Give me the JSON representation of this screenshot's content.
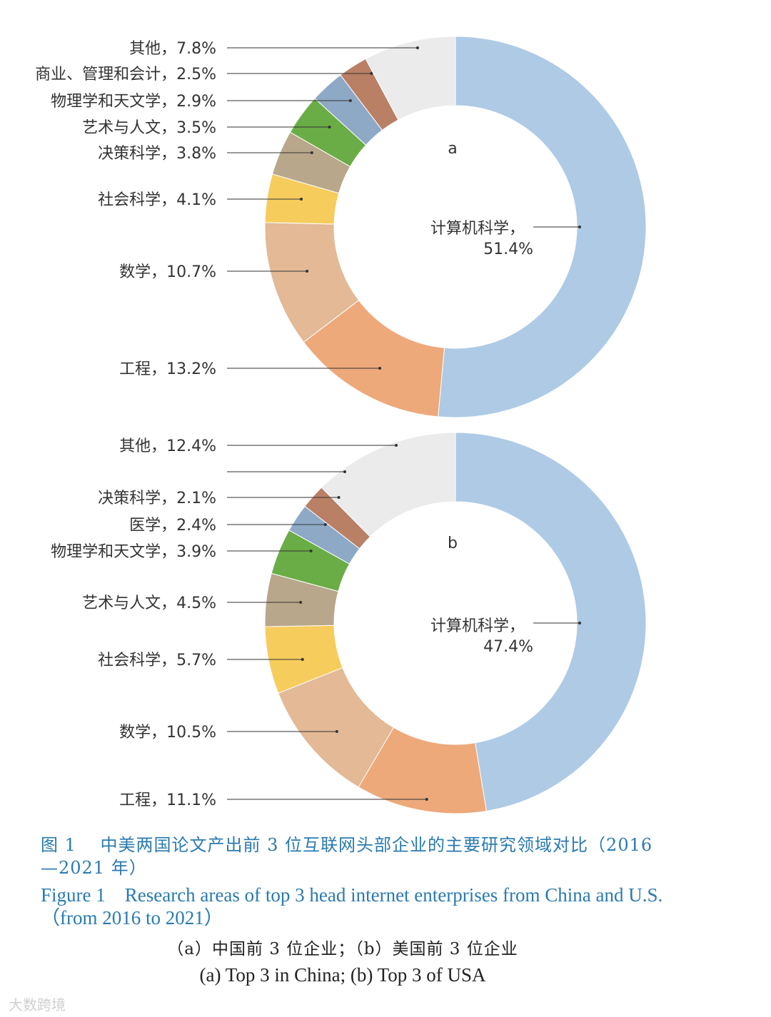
{
  "chart_data": [
    {
      "type": "pie",
      "panel": "a",
      "center_label": "计算机科学，",
      "center_value": "51.4%",
      "slices": [
        {
          "label": "计算机科学",
          "value": 51.4,
          "color": "#aecae5",
          "text": "计算机科学，51.4%"
        },
        {
          "label": "工程",
          "value": 13.2,
          "color": "#eda97a",
          "text": "工程，13.2%"
        },
        {
          "label": "数学",
          "value": 10.7,
          "color": "#e3b996",
          "text": "数学，10.7%"
        },
        {
          "label": "社会科学",
          "value": 4.1,
          "color": "#f6cc5c",
          "text": "社会科学，4.1%"
        },
        {
          "label": "决策科学",
          "value": 3.8,
          "color": "#b8a78a",
          "text": "决策科学，3.8%"
        },
        {
          "label": "艺术与人文",
          "value": 3.5,
          "color": "#6aad46",
          "text": "艺术与人文，3.5%"
        },
        {
          "label": "物理学和天文学",
          "value": 2.9,
          "color": "#8ea9c6",
          "text": "物理学和天文学，2.9%"
        },
        {
          "label": "商业、管理和会计",
          "value": 2.5,
          "color": "#b98065",
          "text": "商业、管理和会计，2.5%"
        },
        {
          "label": "其他",
          "value": 7.8,
          "color": "#ebebeb",
          "text": "其他，7.8%"
        }
      ]
    },
    {
      "type": "pie",
      "panel": "b",
      "center_label": "计算机科学，",
      "center_value": "47.4%",
      "slices": [
        {
          "label": "计算机科学",
          "value": 47.4,
          "color": "#aecae5",
          "text": "计算机科学，47.4%"
        },
        {
          "label": "工程",
          "value": 11.1,
          "color": "#eda97a",
          "text": "工程，11.1%"
        },
        {
          "label": "数学",
          "value": 10.5,
          "color": "#e3b996",
          "text": "数学，10.5%"
        },
        {
          "label": "社会科学",
          "value": 5.7,
          "color": "#f6cc5c",
          "text": "社会科学，5.7%"
        },
        {
          "label": "艺术与人文",
          "value": 4.5,
          "color": "#b8a78a",
          "text": "艺术与人文，4.5%"
        },
        {
          "label": "物理学和天文学",
          "value": 3.9,
          "color": "#6aad46",
          "text": "物理学和天文学，3.9%"
        },
        {
          "label": "医学",
          "value": 2.4,
          "color": "#8ea9c6",
          "text": "医学，2.4%"
        },
        {
          "label": "决策科学",
          "value": 2.1,
          "color": "#b98065",
          "text": "决策科学，2.1%"
        },
        {
          "label": "",
          "value": 0,
          "color": "#ebebeb",
          "text": ""
        },
        {
          "label": "其他",
          "value": 12.4,
          "color": "#ebebeb",
          "text": "其他，12.4%"
        }
      ]
    }
  ],
  "caption": {
    "zh": "图 1　 中美两国论文产出前 3 位互联网头部企业的主要研究领域对比（2016—2021 年）",
    "en": "Figure 1　Research areas of top 3 head internet enterprises from China and U.S.（from 2016 to 2021）",
    "sub_zh": "（a）中国前 3 位企业；（b）美国前 3 位企业",
    "sub_en": "(a) Top 3 in China; (b) Top 3 of USA"
  },
  "watermark": "大数跨境"
}
